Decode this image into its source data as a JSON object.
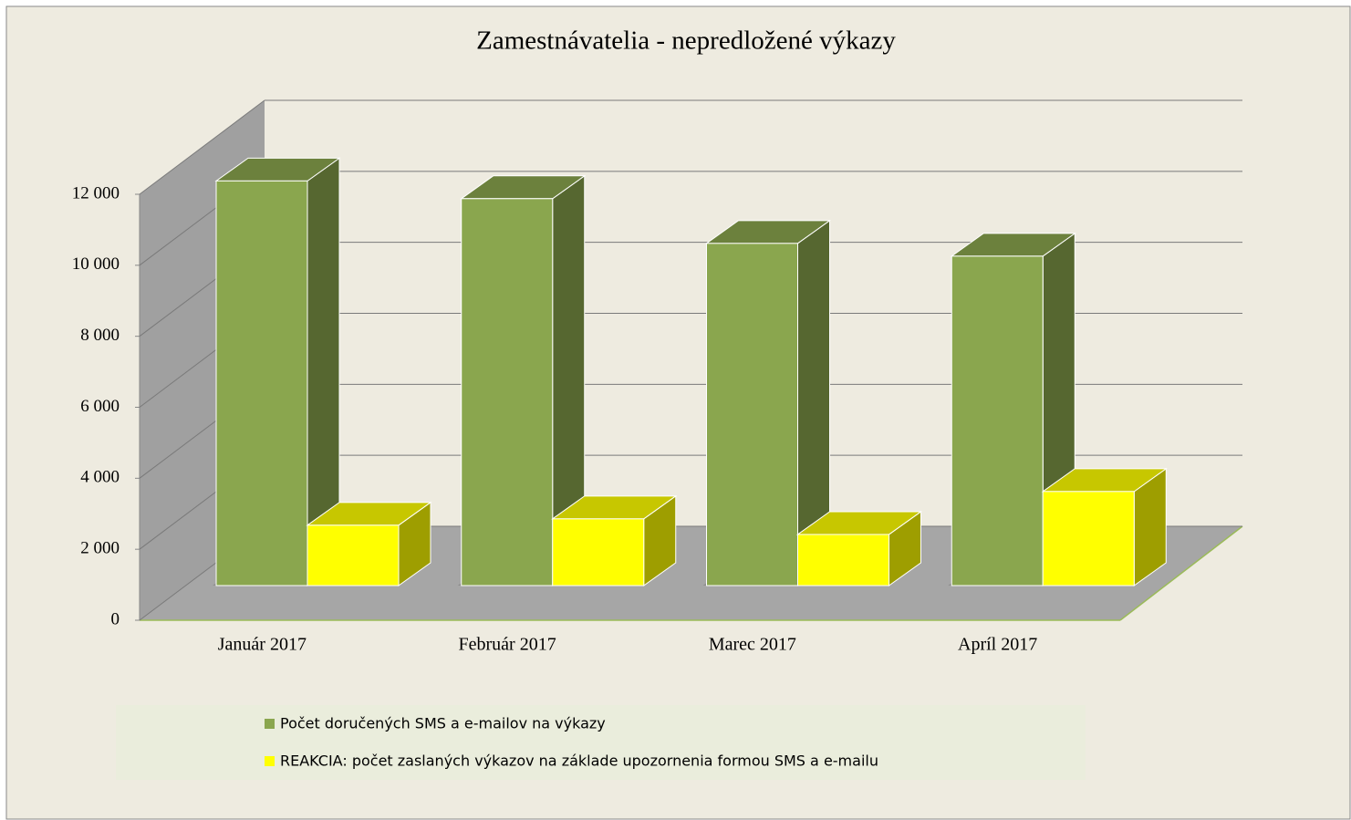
{
  "chart_data": {
    "type": "bar3d",
    "title": "Zamestnávatelia - nepredložené  výkazy",
    "categories": [
      "Január 2017",
      "Február 2017",
      "Marec 2017",
      "Apríl 2017"
    ],
    "series": [
      {
        "name": "Počet doručených SMS a e-mailov na výkazy",
        "color": "#8aa64e",
        "values": [
          11400,
          10900,
          9640,
          9280
        ]
      },
      {
        "name": "REAKCIA: počet zaslaných výkazov na základe upozornenia formou SMS a e-mailu",
        "color": "#ffff00",
        "values": [
          1700,
          1880,
          1440,
          2650
        ]
      }
    ],
    "ylim": [
      0,
      12000
    ],
    "yticks": [
      {
        "value": 0,
        "label": "0"
      },
      {
        "value": 2000,
        "label": "2 000"
      },
      {
        "value": 4000,
        "label": "4 000"
      },
      {
        "value": 6000,
        "label": "6 000"
      },
      {
        "value": 8000,
        "label": "8 000"
      },
      {
        "value": 10000,
        "label": "10 000"
      },
      {
        "value": 12000,
        "label": "12 000"
      }
    ],
    "grid": true
  }
}
